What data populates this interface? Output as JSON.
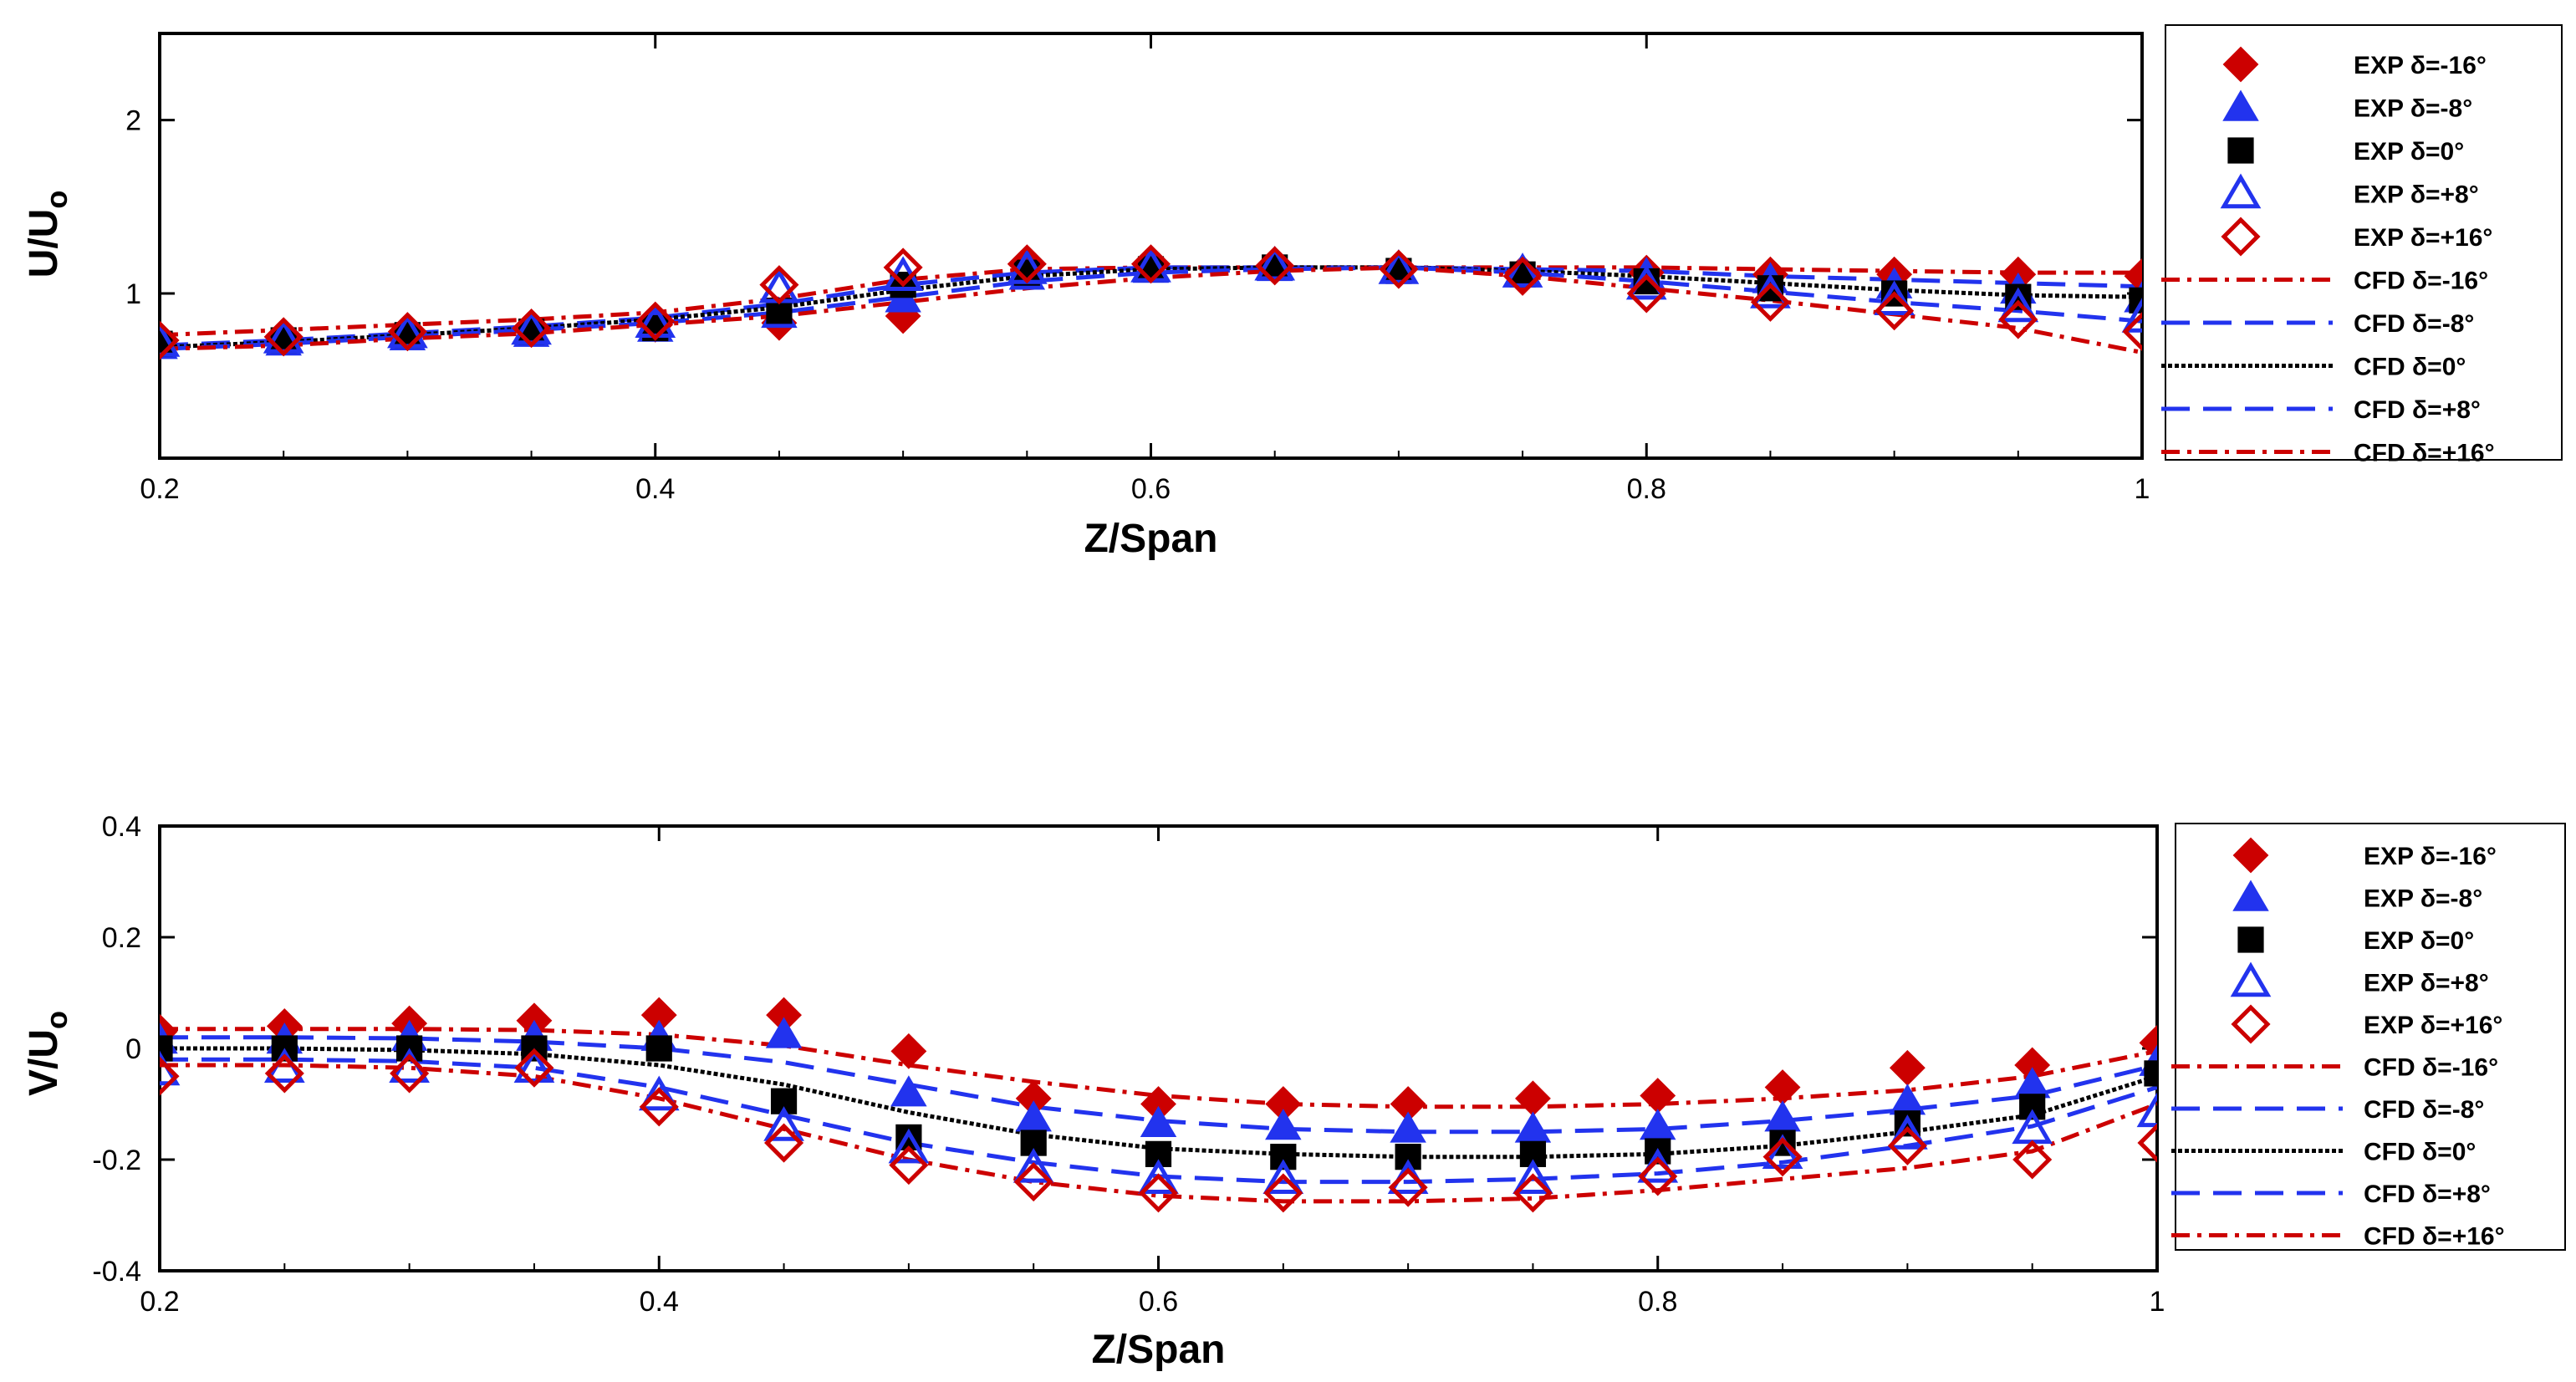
{
  "chart_data": [
    {
      "type": "line",
      "xlabel": "Z/Span",
      "ylabel": "U/U",
      "ylabel_sub": "o",
      "xlim": [
        0.2,
        1.0
      ],
      "ylim": [
        0.05,
        2.5
      ],
      "xticks": [
        0.2,
        0.4,
        0.6,
        0.8,
        1.0
      ],
      "xtick_labels": [
        "0.2",
        "0.4",
        "0.6",
        "0.8",
        "1"
      ],
      "yticks": [
        1,
        2
      ],
      "ytick_labels": [
        "1",
        "2"
      ],
      "legend_position": "right",
      "grid": false,
      "x": [
        0.2,
        0.25,
        0.3,
        0.35,
        0.4,
        0.45,
        0.5,
        0.55,
        0.6,
        0.65,
        0.7,
        0.75,
        0.8,
        0.85,
        0.9,
        0.95,
        1.0
      ],
      "series": [
        {
          "name": "EXP δ=-16°",
          "kind": "marker",
          "marker": "diamond-filled",
          "color": "#cc0000",
          "values": [
            0.72,
            0.76,
            0.77,
            0.79,
            0.82,
            0.83,
            0.87,
            1.17,
            1.17,
            1.16,
            1.13,
            1.12,
            1.12,
            1.11,
            1.11,
            1.11,
            1.1
          ]
        },
        {
          "name": "EXP δ=-8°",
          "kind": "marker",
          "marker": "triangle-filled",
          "color": "#2233ee",
          "values": [
            0.7,
            0.72,
            0.75,
            0.77,
            0.8,
            0.88,
            0.97,
            1.1,
            1.14,
            1.15,
            1.14,
            1.13,
            1.11,
            1.08,
            1.05,
            1.02,
            0.97
          ]
        },
        {
          "name": "EXP δ=0°",
          "kind": "marker",
          "marker": "square-filled",
          "color": "#000000",
          "values": [
            0.71,
            0.73,
            0.76,
            0.78,
            0.8,
            0.9,
            1.05,
            1.12,
            1.14,
            1.15,
            1.13,
            1.11,
            1.07,
            1.03,
            1.0,
            0.98,
            0.96
          ]
        },
        {
          "name": "EXP δ=+8°",
          "kind": "marker",
          "marker": "triangle-open",
          "color": "#2233ee",
          "values": [
            0.72,
            0.74,
            0.77,
            0.79,
            0.83,
            1.03,
            1.1,
            1.14,
            1.15,
            1.16,
            1.14,
            1.12,
            1.05,
            1.0,
            0.96,
            0.92,
            0.86
          ]
        },
        {
          "name": "EXP δ=+16°",
          "kind": "marker",
          "marker": "diamond-open",
          "color": "#cc0000",
          "values": [
            0.73,
            0.75,
            0.78,
            0.8,
            0.84,
            1.05,
            1.15,
            1.17,
            1.17,
            1.16,
            1.14,
            1.1,
            1.0,
            0.95,
            0.9,
            0.85,
            0.78
          ]
        },
        {
          "name": "CFD δ=-16°",
          "kind": "line",
          "dash": "dashdot",
          "color": "#cc0000",
          "values": [
            0.76,
            0.79,
            0.82,
            0.85,
            0.89,
            0.97,
            1.08,
            1.14,
            1.15,
            1.15,
            1.15,
            1.15,
            1.15,
            1.14,
            1.13,
            1.12,
            1.12
          ]
        },
        {
          "name": "CFD δ=-8°",
          "kind": "line",
          "dash": "dash",
          "color": "#2233ee",
          "values": [
            0.7,
            0.73,
            0.77,
            0.81,
            0.86,
            0.94,
            1.05,
            1.12,
            1.15,
            1.15,
            1.15,
            1.14,
            1.13,
            1.1,
            1.08,
            1.06,
            1.04
          ]
        },
        {
          "name": "CFD δ=0°",
          "kind": "line",
          "dash": "dot",
          "color": "#000000",
          "values": [
            0.69,
            0.72,
            0.76,
            0.8,
            0.85,
            0.92,
            1.02,
            1.1,
            1.14,
            1.15,
            1.15,
            1.13,
            1.1,
            1.06,
            1.02,
            0.99,
            0.98
          ]
        },
        {
          "name": "CFD δ=+8°",
          "kind": "line",
          "dash": "dash",
          "color": "#2233ee",
          "values": [
            0.68,
            0.71,
            0.75,
            0.79,
            0.83,
            0.89,
            0.98,
            1.07,
            1.12,
            1.14,
            1.15,
            1.12,
            1.07,
            1.01,
            0.95,
            0.9,
            0.84
          ]
        },
        {
          "name": "CFD δ=+16°",
          "kind": "line",
          "dash": "dashdot",
          "color": "#cc0000",
          "values": [
            0.68,
            0.7,
            0.74,
            0.77,
            0.82,
            0.87,
            0.95,
            1.03,
            1.09,
            1.13,
            1.15,
            1.1,
            1.03,
            0.96,
            0.88,
            0.8,
            0.66
          ]
        }
      ]
    },
    {
      "type": "line",
      "xlabel": "Z/Span",
      "ylabel": "V/U",
      "ylabel_sub": "o",
      "xlim": [
        0.2,
        1.0
      ],
      "ylim": [
        -0.4,
        0.4
      ],
      "xticks": [
        0.2,
        0.4,
        0.6,
        0.8,
        1.0
      ],
      "xtick_labels": [
        "0.2",
        "0.4",
        "0.6",
        "0.8",
        "1"
      ],
      "yticks": [
        -0.4,
        -0.2,
        0,
        0.2,
        0.4
      ],
      "ytick_labels": [
        "-0.4",
        "-0.2",
        "0",
        "0.2",
        "0.4"
      ],
      "legend_position": "right",
      "grid": false,
      "x": [
        0.2,
        0.25,
        0.3,
        0.35,
        0.4,
        0.45,
        0.5,
        0.55,
        0.6,
        0.65,
        0.7,
        0.75,
        0.8,
        0.85,
        0.9,
        0.95,
        1.0
      ],
      "series": [
        {
          "name": "EXP δ=-16°",
          "kind": "marker",
          "marker": "diamond-filled",
          "color": "#cc0000",
          "values": [
            0.03,
            0.04,
            0.045,
            0.05,
            0.06,
            0.06,
            -0.005,
            -0.09,
            -0.1,
            -0.1,
            -0.1,
            -0.09,
            -0.085,
            -0.07,
            -0.035,
            -0.03,
            0.01
          ]
        },
        {
          "name": "EXP δ=-8°",
          "kind": "marker",
          "marker": "triangle-filled",
          "color": "#2233ee",
          "values": [
            0.015,
            0.015,
            0.02,
            0.02,
            0.02,
            0.025,
            -0.08,
            -0.125,
            -0.135,
            -0.14,
            -0.145,
            -0.145,
            -0.14,
            -0.125,
            -0.095,
            -0.065,
            -0.025
          ]
        },
        {
          "name": "EXP δ=0°",
          "kind": "marker",
          "marker": "square-filled",
          "color": "#000000",
          "values": [
            0.0,
            0.0,
            0.0,
            0.0,
            0.0,
            -0.095,
            -0.16,
            -0.17,
            -0.19,
            -0.195,
            -0.195,
            -0.19,
            -0.185,
            -0.17,
            -0.135,
            -0.105,
            -0.045
          ]
        },
        {
          "name": "EXP δ=+8°",
          "kind": "marker",
          "marker": "triangle-open",
          "color": "#2233ee",
          "values": [
            -0.04,
            -0.035,
            -0.035,
            -0.035,
            -0.085,
            -0.14,
            -0.18,
            -0.215,
            -0.235,
            -0.235,
            -0.235,
            -0.235,
            -0.215,
            -0.19,
            -0.155,
            -0.145,
            -0.115
          ]
        },
        {
          "name": "EXP δ=+16°",
          "kind": "marker",
          "marker": "diamond-open",
          "color": "#cc0000",
          "values": [
            -0.05,
            -0.045,
            -0.045,
            -0.035,
            -0.105,
            -0.17,
            -0.21,
            -0.24,
            -0.26,
            -0.26,
            -0.25,
            -0.26,
            -0.23,
            -0.195,
            -0.175,
            -0.2,
            -0.17
          ]
        },
        {
          "name": "CFD δ=-16°",
          "kind": "line",
          "dash": "dashdot",
          "color": "#cc0000",
          "values": [
            0.035,
            0.035,
            0.035,
            0.033,
            0.025,
            0.005,
            -0.03,
            -0.06,
            -0.085,
            -0.1,
            -0.105,
            -0.105,
            -0.1,
            -0.09,
            -0.075,
            -0.05,
            -0.005
          ]
        },
        {
          "name": "CFD δ=-8°",
          "kind": "line",
          "dash": "dash",
          "color": "#2233ee",
          "values": [
            0.02,
            0.02,
            0.018,
            0.012,
            0.0,
            -0.025,
            -0.065,
            -0.105,
            -0.13,
            -0.145,
            -0.15,
            -0.15,
            -0.145,
            -0.13,
            -0.11,
            -0.085,
            -0.03
          ]
        },
        {
          "name": "CFD δ=0°",
          "kind": "line",
          "dash": "dot",
          "color": "#000000",
          "values": [
            0.0,
            0.0,
            -0.003,
            -0.01,
            -0.03,
            -0.065,
            -0.115,
            -0.155,
            -0.18,
            -0.19,
            -0.195,
            -0.195,
            -0.19,
            -0.175,
            -0.15,
            -0.12,
            -0.05
          ]
        },
        {
          "name": "CFD δ=+8°",
          "kind": "line",
          "dash": "dash",
          "color": "#2233ee",
          "values": [
            -0.02,
            -0.02,
            -0.023,
            -0.035,
            -0.07,
            -0.12,
            -0.17,
            -0.205,
            -0.23,
            -0.24,
            -0.24,
            -0.235,
            -0.225,
            -0.205,
            -0.175,
            -0.14,
            -0.07
          ]
        },
        {
          "name": "CFD δ=+16°",
          "kind": "line",
          "dash": "dashdot",
          "color": "#cc0000",
          "values": [
            -0.03,
            -0.03,
            -0.035,
            -0.05,
            -0.09,
            -0.145,
            -0.2,
            -0.24,
            -0.265,
            -0.275,
            -0.275,
            -0.27,
            -0.255,
            -0.235,
            -0.215,
            -0.185,
            -0.1
          ]
        }
      ]
    }
  ]
}
